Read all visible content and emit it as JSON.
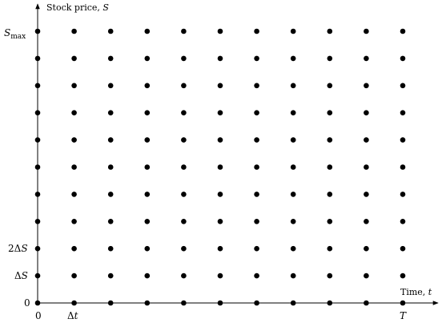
{
  "diagram": {
    "y_axis_title": {
      "text": "Stock price, ",
      "symbol": "S"
    },
    "x_axis_title": {
      "text": "Time, ",
      "symbol": "t"
    },
    "y_labels": {
      "smax": {
        "base": "S",
        "sub": "max"
      },
      "two_delta_s": {
        "coef": "2Δ",
        "symbol": "S"
      },
      "delta_s": {
        "coef": "Δ",
        "symbol": "S"
      },
      "zero": "0"
    },
    "x_labels": {
      "zero": "0",
      "delta_t": {
        "coef": "Δ",
        "symbol": "t"
      },
      "T": "T"
    },
    "grid": {
      "columns": 11,
      "rows": 11
    },
    "dot_color": "#000000",
    "axis_color": "#000000"
  }
}
